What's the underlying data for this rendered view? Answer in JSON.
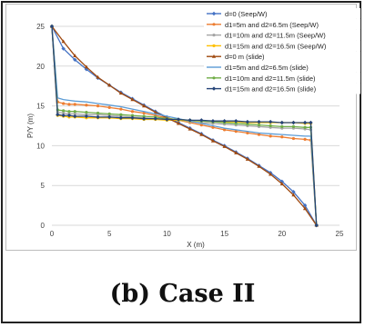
{
  "caption": "(b) Case II",
  "chart_data": {
    "type": "line",
    "xlabel": "X (m)",
    "ylabel": "P/Y (m)",
    "xlim": [
      0,
      25
    ],
    "ylim": [
      0,
      25
    ],
    "xticks": [
      0,
      5,
      10,
      15,
      20,
      25
    ],
    "yticks": [
      0,
      5,
      10,
      15,
      20,
      25
    ],
    "grid": "horizontal",
    "legend_position": "top-right",
    "series": [
      {
        "name": "d=0 (Seep/W)",
        "color": "#4472c4",
        "marker": "diamond",
        "x": [
          0,
          1,
          2,
          3,
          4,
          5,
          6,
          7,
          8,
          9,
          10,
          11,
          12,
          13,
          14,
          15,
          16,
          17,
          18,
          19,
          20,
          21,
          22,
          23
        ],
        "y": [
          25,
          22.2,
          20.8,
          19.6,
          18.5,
          17.6,
          16.7,
          15.9,
          15.1,
          14.3,
          13.6,
          12.9,
          12.2,
          11.5,
          10.7,
          10.0,
          9.2,
          8.4,
          7.5,
          6.6,
          5.5,
          4.2,
          2.5,
          0
        ]
      },
      {
        "name": "d1=5m and d2=6.5m  (Seep/W)",
        "color": "#ed7d31",
        "marker": "circle",
        "x": [
          0,
          0.5,
          1,
          1.5,
          2,
          3,
          4,
          5,
          6,
          7,
          8,
          9,
          10,
          11,
          12,
          13,
          14,
          15,
          16,
          17,
          18,
          19,
          20,
          21,
          22,
          22.5,
          23
        ],
        "y": [
          25,
          15.5,
          15.3,
          15.2,
          15.2,
          15.1,
          15.0,
          14.8,
          14.6,
          14.3,
          14.1,
          13.8,
          13.5,
          13.2,
          12.9,
          12.6,
          12.3,
          12.0,
          11.8,
          11.6,
          11.4,
          11.2,
          11.1,
          10.9,
          10.8,
          10.7,
          0
        ]
      },
      {
        "name": "d1=10m and d2=11.5m  (Seep/W)",
        "color": "#a5a5a5",
        "marker": "circle",
        "x": [
          0,
          0.5,
          1,
          1.5,
          2,
          3,
          4,
          5,
          6,
          7,
          8,
          9,
          10,
          11,
          12,
          13,
          14,
          15,
          16,
          17,
          18,
          19,
          20,
          21,
          22,
          22.5,
          23
        ],
        "y": [
          25,
          14.2,
          14.1,
          14.0,
          14.0,
          13.9,
          13.9,
          13.8,
          13.7,
          13.6,
          13.5,
          13.4,
          13.3,
          13.2,
          13.0,
          12.9,
          12.8,
          12.7,
          12.6,
          12.5,
          12.4,
          12.3,
          12.2,
          12.2,
          12.1,
          12.0,
          0
        ]
      },
      {
        "name": "d1=15m and d2=16.5m  (Seep/W)",
        "color": "#ffc000",
        "marker": "circle",
        "x": [
          0,
          0.5,
          1,
          1.5,
          2,
          3,
          4,
          5,
          6,
          7,
          8,
          9,
          10,
          11,
          12,
          13,
          14,
          15,
          16,
          17,
          18,
          19,
          20,
          21,
          22,
          22.5,
          23
        ],
        "y": [
          25,
          13.8,
          13.7,
          13.6,
          13.6,
          13.5,
          13.5,
          13.5,
          13.4,
          13.4,
          13.3,
          13.3,
          13.2,
          13.2,
          13.1,
          13.1,
          13.0,
          13.0,
          13.0,
          12.9,
          12.9,
          12.9,
          12.9,
          12.9,
          12.8,
          12.8,
          0
        ]
      },
      {
        "name": "d=0 m (slide)",
        "color": "#9e480e",
        "marker": "triangle",
        "x": [
          0,
          1,
          2,
          3,
          4,
          5,
          6,
          7,
          8,
          9,
          10,
          11,
          12,
          13,
          14,
          15,
          16,
          17,
          18,
          19,
          20,
          21,
          22,
          23
        ],
        "y": [
          25,
          23.1,
          21.3,
          19.9,
          18.6,
          17.6,
          16.6,
          15.8,
          15.0,
          14.2,
          13.5,
          12.8,
          12.1,
          11.4,
          10.6,
          9.9,
          9.1,
          8.3,
          7.4,
          6.4,
          5.2,
          3.8,
          2.1,
          0
        ]
      },
      {
        "name": "d1=5m and d2=6.5m (slide)",
        "color": "#5b9bd5",
        "marker": "none",
        "x": [
          0,
          0.5,
          1,
          1.5,
          2,
          3,
          4,
          5,
          6,
          7,
          8,
          9,
          10,
          11,
          12,
          13,
          14,
          15,
          16,
          17,
          18,
          19,
          20,
          21,
          22,
          22.5,
          23
        ],
        "y": [
          25,
          16.0,
          15.8,
          15.7,
          15.6,
          15.5,
          15.3,
          15.1,
          14.9,
          14.6,
          14.3,
          14.0,
          13.7,
          13.4,
          13.1,
          12.8,
          12.5,
          12.2,
          12.0,
          11.8,
          11.6,
          11.5,
          11.4,
          11.3,
          11.2,
          11.2,
          0
        ]
      },
      {
        "name": "d1=10m and d2=11.5m (slide)",
        "color": "#70ad47",
        "marker": "circle",
        "x": [
          0,
          0.5,
          1,
          1.5,
          2,
          3,
          4,
          5,
          6,
          7,
          8,
          9,
          10,
          11,
          12,
          13,
          14,
          15,
          16,
          17,
          18,
          19,
          20,
          21,
          22,
          22.5,
          23
        ],
        "y": [
          25,
          14.5,
          14.4,
          14.3,
          14.3,
          14.2,
          14.1,
          14.0,
          13.9,
          13.8,
          13.7,
          13.6,
          13.4,
          13.3,
          13.2,
          13.1,
          13.0,
          12.9,
          12.8,
          12.7,
          12.6,
          12.5,
          12.4,
          12.4,
          12.3,
          12.3,
          0
        ]
      },
      {
        "name": "d1=15m and d2=16.5m (slide)",
        "color": "#264478",
        "marker": "diamond",
        "x": [
          0,
          0.5,
          1,
          1.5,
          2,
          3,
          4,
          5,
          6,
          7,
          8,
          9,
          10,
          11,
          12,
          13,
          14,
          15,
          16,
          17,
          18,
          19,
          20,
          21,
          22,
          22.5,
          23
        ],
        "y": [
          25,
          13.9,
          13.8,
          13.8,
          13.7,
          13.7,
          13.6,
          13.6,
          13.5,
          13.5,
          13.4,
          13.4,
          13.3,
          13.3,
          13.2,
          13.2,
          13.1,
          13.1,
          13.1,
          13.0,
          13.0,
          13.0,
          12.9,
          12.9,
          12.9,
          12.9,
          0
        ]
      }
    ]
  }
}
